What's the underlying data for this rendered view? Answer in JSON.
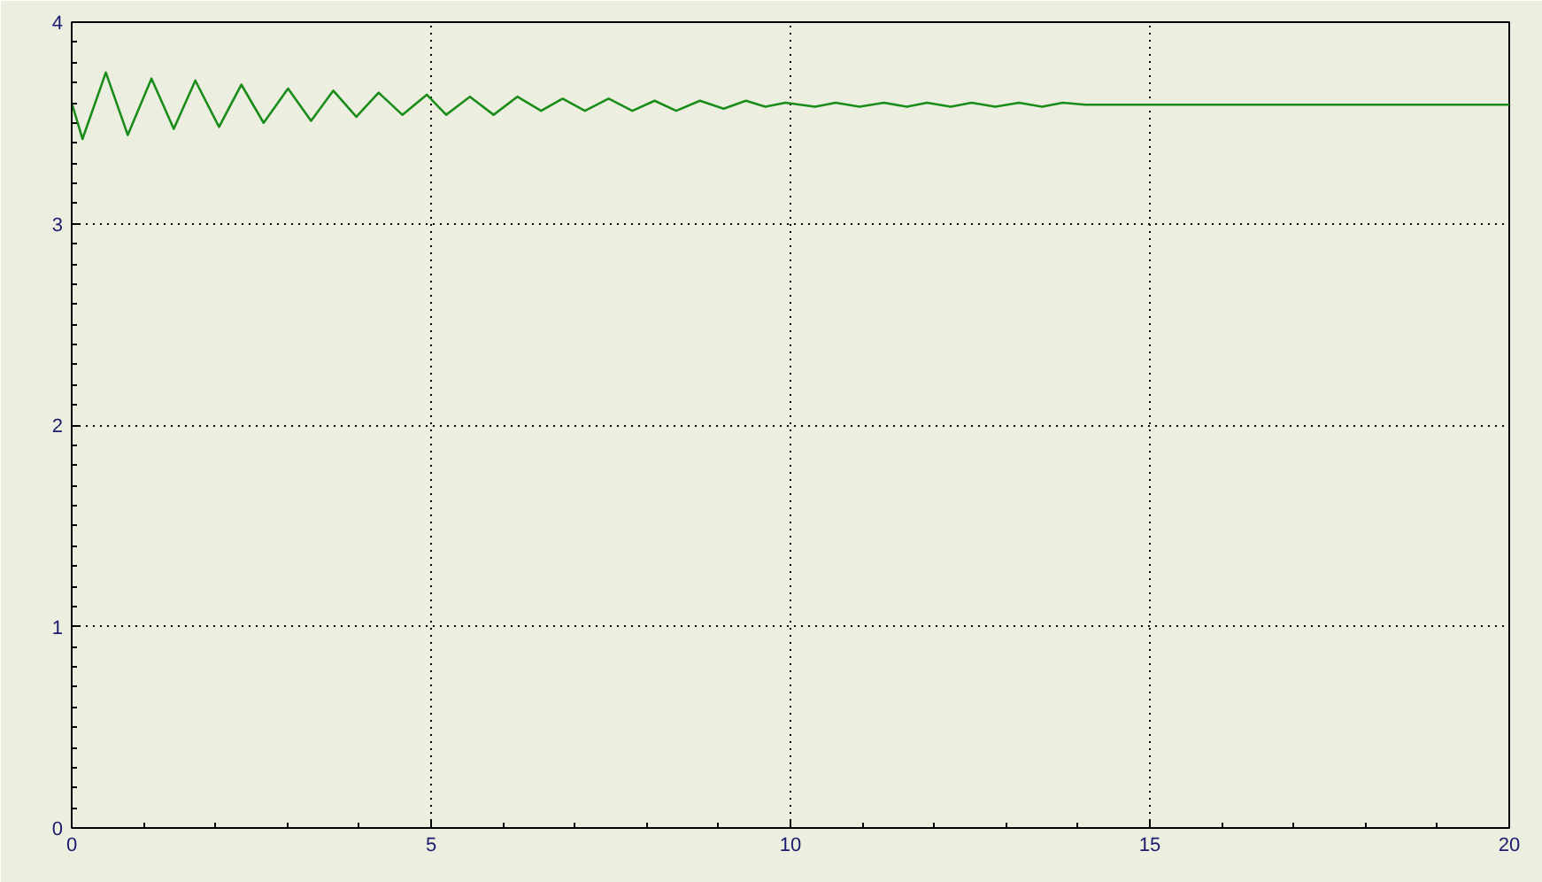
{
  "chart_data": {
    "type": "line",
    "x": [
      0,
      0.15,
      0.475,
      0.78,
      1.11,
      1.42,
      1.72,
      2.05,
      2.36,
      2.67,
      3.01,
      3.33,
      3.64,
      3.96,
      4.27,
      4.6,
      4.94,
      5.21,
      5.54,
      5.87,
      6.2,
      6.53,
      6.83,
      7.14,
      7.47,
      7.8,
      8.11,
      8.41,
      8.74,
      9.07,
      9.38,
      9.65,
      9.93,
      10.34,
      10.63,
      10.96,
      11.3,
      11.62,
      11.9,
      12.23,
      12.52,
      12.85,
      13.18,
      13.5,
      13.79,
      14.1,
      20
    ],
    "series": [
      {
        "color": "#1a8c1a",
        "values": [
          3.6,
          3.42,
          3.75,
          3.44,
          3.72,
          3.47,
          3.71,
          3.48,
          3.69,
          3.5,
          3.67,
          3.51,
          3.66,
          3.53,
          3.65,
          3.54,
          3.64,
          3.54,
          3.63,
          3.54,
          3.63,
          3.56,
          3.62,
          3.56,
          3.62,
          3.56,
          3.61,
          3.56,
          3.61,
          3.57,
          3.61,
          3.58,
          3.6,
          3.58,
          3.6,
          3.58,
          3.6,
          3.58,
          3.6,
          3.58,
          3.6,
          3.58,
          3.6,
          3.58,
          3.6,
          3.59,
          3.59
        ]
      }
    ],
    "xlim": [
      0,
      20
    ],
    "ylim": [
      0,
      4
    ],
    "xticks": [
      0,
      5,
      10,
      15,
      20
    ],
    "yticks": [
      0,
      1,
      2,
      3,
      4
    ],
    "grid": true,
    "marker": "none",
    "line_style": "solid"
  }
}
